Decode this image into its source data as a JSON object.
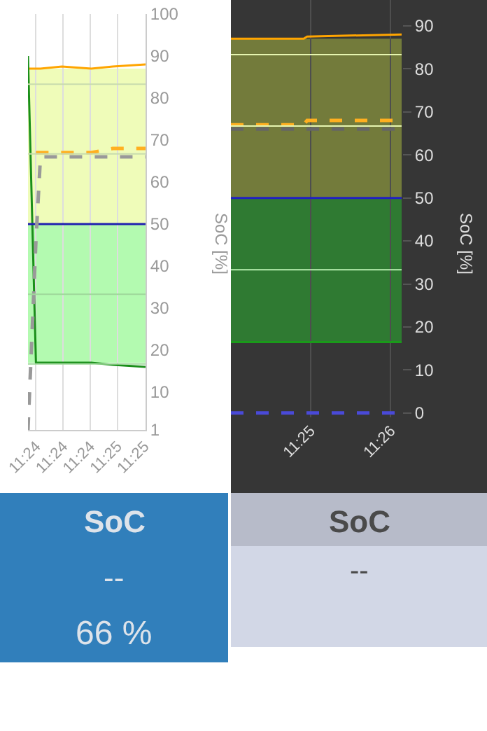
{
  "chart_data": [
    {
      "type": "line",
      "ylabel": "SoC [%]",
      "grid": "x",
      "xlim": [
        11.39886,
        11.41572
      ],
      "xticks": [
        {
          "value": 11.4,
          "label": "11:24"
        },
        {
          "value": 11.40389,
          "label": "11:24"
        },
        {
          "value": 11.40778,
          "label": "11:24"
        },
        {
          "value": 11.41167,
          "label": "11:25"
        },
        {
          "value": 11.41556,
          "label": "11:25"
        }
      ],
      "ylim": [
        1,
        100
      ],
      "yticks": [
        1,
        10,
        20,
        30,
        40,
        50,
        60,
        70,
        80,
        90,
        100
      ],
      "x": [
        11.39886,
        11.4,
        11.40065,
        11.40373,
        11.40794,
        11.41102,
        11.41572
      ],
      "bands": [
        {
          "axis": "y",
          "from": 50,
          "to": 87,
          "color": "#effcb9"
        },
        {
          "axis": "y",
          "from": 17,
          "to": 50,
          "color": "#b3fab0"
        }
      ],
      "ref_lines": [
        {
          "axis": "y",
          "value": 83.3,
          "color": "#c9dcae"
        },
        {
          "axis": "y",
          "value": 66.7,
          "color": "#c9dcae"
        },
        {
          "axis": "y",
          "value": 33.3,
          "color": "#9ed89a"
        },
        {
          "axis": "y",
          "value": 16.7,
          "color": "#9ed89a"
        }
      ],
      "series": [
        {
          "color": "#ffa500",
          "values": [
            87,
            87,
            87,
            87.5,
            87,
            87.5,
            88
          ]
        },
        {
          "color": "#1a8f1a",
          "values": [
            90,
            17,
            17,
            17,
            17,
            16.5,
            16
          ]
        },
        {
          "color": "#2020b0",
          "values": [
            50,
            50,
            50,
            50,
            50,
            50,
            50
          ]
        },
        {
          "color": "#ffb020",
          "values": [
            null,
            67,
            67,
            67,
            67,
            68,
            68
          ],
          "line_style": "dashed"
        },
        {
          "color": "#999999",
          "values": [
            1,
            46,
            66,
            66,
            66,
            66,
            66
          ],
          "line_style": "dashed"
        }
      ]
    },
    {
      "type": "line",
      "ylabel": "SoC [%]",
      "grid": "x",
      "xlim": [
        11.4002,
        11.4356
      ],
      "xticks": [
        {
          "value": 11.41667,
          "label": "11:25"
        },
        {
          "value": 11.43333,
          "label": "11:26"
        }
      ],
      "ylim": [
        -1,
        96
      ],
      "yticks": [
        0,
        10,
        20,
        30,
        40,
        50,
        60,
        70,
        80,
        90
      ],
      "x": [
        11.4002,
        11.4153,
        11.416,
        11.4356
      ],
      "bands": [
        {
          "axis": "y",
          "from": 50,
          "to": 87,
          "color": "#737b3b"
        },
        {
          "axis": "y",
          "from": 16.5,
          "to": 50,
          "color": "#2f7a32"
        }
      ],
      "ref_lines": [
        {
          "axis": "y",
          "value": 83.3,
          "color": "#e6f5b0"
        },
        {
          "axis": "y",
          "value": 66.7,
          "color": "#e6f5b0"
        },
        {
          "axis": "y",
          "value": 33.3,
          "color": "#b8f0b0"
        }
      ],
      "series": [
        {
          "color": "#ffa500",
          "values": [
            87,
            87,
            87.5,
            88
          ]
        },
        {
          "color": "#1a9a1a",
          "values": [
            16.5,
            16.5,
            16.5,
            16.5
          ]
        },
        {
          "color": "#2020c0",
          "values": [
            50,
            50,
            50,
            50
          ]
        },
        {
          "color": "#ffb020",
          "values": [
            67,
            67,
            68,
            68
          ],
          "line_style": "dashed"
        },
        {
          "color": "#666666",
          "values": [
            66,
            66,
            66,
            66
          ],
          "line_style": "dashed"
        },
        {
          "color": "#4a4ad8",
          "values": [
            0,
            0,
            0,
            0
          ],
          "line_style": "dashed"
        }
      ]
    },
    {
      "type": "other",
      "title": "SoC",
      "annotations": [
        "--",
        "66 %"
      ]
    },
    {
      "type": "other",
      "title": "SoC",
      "annotations": [
        "--"
      ]
    }
  ]
}
